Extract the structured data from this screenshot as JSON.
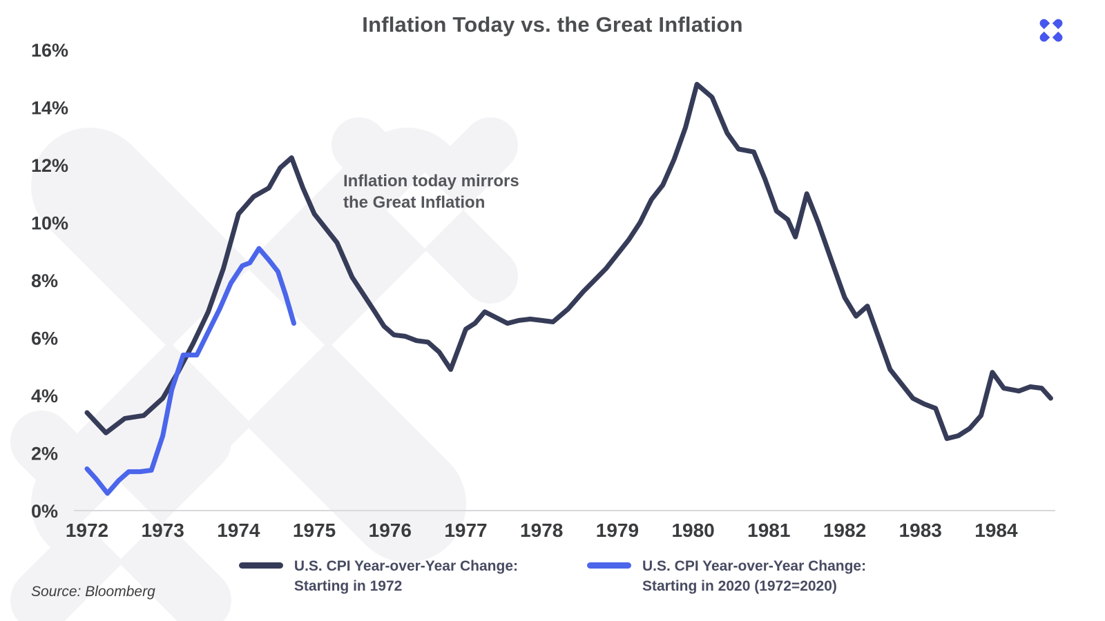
{
  "source": "Source: Bloomberg",
  "brand": {
    "logo_color": "#4656ee"
  },
  "chart_data": {
    "type": "line",
    "title": "Inflation Today vs. the Great Inflation",
    "annotation": "Inflation today mirrors\nthe Great Inflation",
    "xlabel": "",
    "ylabel": "",
    "grid": false,
    "legend_position": "bottom",
    "x_range": [
      1971.9,
      1984.78
    ],
    "y_range": [
      0,
      16
    ],
    "x_ticks": [
      1972,
      1973,
      1974,
      1975,
      1976,
      1977,
      1978,
      1979,
      1980,
      1981,
      1982,
      1983,
      1984
    ],
    "x_tick_labels": [
      "1972",
      "1973",
      "1974",
      "1975",
      "1976",
      "1977",
      "1978",
      "1979",
      "1980",
      "1981",
      "1982",
      "1983",
      "1984"
    ],
    "y_ticks": [
      0,
      2,
      4,
      6,
      8,
      10,
      12,
      14,
      16
    ],
    "y_tick_labels": [
      "0%",
      "2%",
      "4%",
      "6%",
      "8%",
      "10%",
      "12%",
      "14%",
      "16%"
    ],
    "series": [
      {
        "name": "U.S. CPI Year-over-Year Change:\nStarting in 1972",
        "color": "#363c58",
        "x": [
          1972.0,
          1972.25,
          1972.5,
          1972.75,
          1973.0,
          1973.2,
          1973.4,
          1973.6,
          1973.8,
          1974.0,
          1974.2,
          1974.4,
          1974.55,
          1974.7,
          1974.85,
          1975.0,
          1975.15,
          1975.3,
          1975.5,
          1975.65,
          1975.8,
          1975.92,
          1976.05,
          1976.2,
          1976.35,
          1976.5,
          1976.65,
          1976.8,
          1977.0,
          1977.12,
          1977.25,
          1977.4,
          1977.55,
          1977.7,
          1977.85,
          1978.0,
          1978.15,
          1978.35,
          1978.55,
          1978.7,
          1978.85,
          1979.0,
          1979.15,
          1979.3,
          1979.45,
          1979.6,
          1979.75,
          1979.9,
          1980.05,
          1980.25,
          1980.45,
          1980.6,
          1980.8,
          1980.95,
          1981.1,
          1981.25,
          1981.35,
          1981.5,
          1981.65,
          1981.85,
          1982.0,
          1982.15,
          1982.3,
          1982.45,
          1982.6,
          1982.75,
          1982.9,
          1983.05,
          1983.2,
          1983.35,
          1983.5,
          1983.65,
          1983.8,
          1983.95,
          1984.1,
          1984.3,
          1984.45,
          1984.6,
          1984.72
        ],
        "values": [
          3.4,
          2.7,
          3.2,
          3.3,
          3.9,
          4.8,
          5.8,
          6.9,
          8.4,
          10.3,
          10.9,
          11.2,
          11.9,
          12.25,
          11.2,
          10.3,
          9.8,
          9.3,
          8.1,
          7.5,
          6.9,
          6.4,
          6.1,
          6.05,
          5.9,
          5.85,
          5.5,
          4.9,
          6.3,
          6.5,
          6.9,
          6.7,
          6.5,
          6.6,
          6.65,
          6.6,
          6.55,
          7.0,
          7.6,
          8.0,
          8.4,
          8.9,
          9.4,
          10.0,
          10.8,
          11.3,
          12.2,
          13.3,
          14.8,
          14.35,
          13.1,
          12.55,
          12.45,
          11.5,
          10.4,
          10.1,
          9.5,
          11.0,
          10.0,
          8.5,
          7.4,
          6.75,
          7.1,
          6.0,
          4.9,
          4.4,
          3.9,
          3.7,
          3.55,
          2.5,
          2.6,
          2.85,
          3.3,
          4.8,
          4.25,
          4.15,
          4.3,
          4.25,
          3.9
        ]
      },
      {
        "name": "U.S. CPI Year-over-Year Change:\nStarting in 2020 (1972=2020)",
        "color": "#4b66ea",
        "x": [
          1972.0,
          1972.12,
          1972.27,
          1972.42,
          1972.55,
          1972.7,
          1972.85,
          1973.0,
          1973.12,
          1973.27,
          1973.45,
          1973.6,
          1973.75,
          1973.9,
          1974.05,
          1974.15,
          1974.27,
          1974.4,
          1974.52,
          1974.62,
          1974.73
        ],
        "values": [
          1.45,
          1.1,
          0.6,
          1.05,
          1.35,
          1.35,
          1.4,
          2.6,
          4.2,
          5.4,
          5.4,
          6.2,
          7.0,
          7.9,
          8.5,
          8.6,
          9.1,
          8.7,
          8.3,
          7.5,
          6.5
        ]
      }
    ]
  }
}
